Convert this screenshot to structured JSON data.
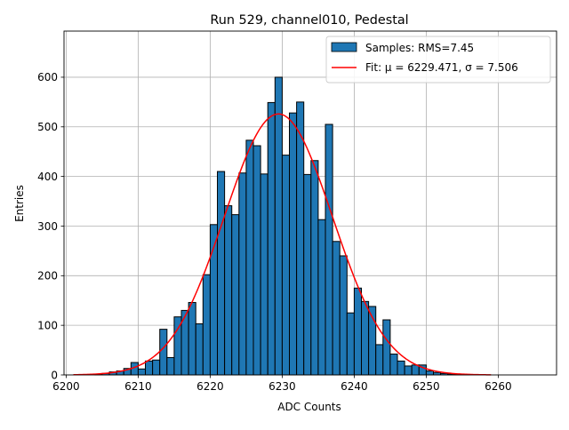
{
  "chart_data": {
    "type": "bar",
    "title": "Run 529, channel010, Pedestal",
    "xlabel": "ADC Counts",
    "ylabel": "Entries",
    "xlim": [
      6199.7,
      6268.1
    ],
    "ylim": [
      0,
      693
    ],
    "xticks": [
      6200,
      6210,
      6220,
      6230,
      6240,
      6250,
      6260
    ],
    "yticks": [
      0,
      100,
      200,
      300,
      400,
      500,
      600
    ],
    "grid": true,
    "legend_position": "top-right",
    "histogram": {
      "name": "Samples: RMS=7.45",
      "bin_edges_start": 6202.0,
      "bin_width": 1.0,
      "values": [
        0,
        0,
        1,
        3,
        6,
        8,
        13,
        25,
        12,
        28,
        30,
        92,
        35,
        117,
        130,
        146,
        103,
        202,
        303,
        410,
        341,
        323,
        407,
        473,
        462,
        405,
        549,
        600,
        443,
        528,
        550,
        404,
        432,
        313,
        505,
        269,
        240,
        125,
        175,
        148,
        138,
        61,
        111,
        42,
        28,
        18,
        20,
        20,
        8,
        5,
        3,
        2,
        1,
        1,
        0,
        0,
        0,
        0,
        0,
        0,
        0,
        0,
        0
      ]
    },
    "fit": {
      "name": "Fit: μ = 6229.471, σ = 7.506",
      "mu": 6229.471,
      "sigma": 7.506,
      "amplitude": 526,
      "x_range": [
        6201,
        6259
      ]
    },
    "colors": {
      "bars": "#1f77b4",
      "bar_edge": "#000000",
      "fit": "#ff0000",
      "grid": "#b0b0b0"
    },
    "legend": [
      {
        "label": "Samples: RMS=7.45",
        "kind": "patch",
        "color": "#1f77b4"
      },
      {
        "label": "Fit: μ = 6229.471, σ = 7.506",
        "kind": "line",
        "color": "#ff0000"
      }
    ]
  }
}
